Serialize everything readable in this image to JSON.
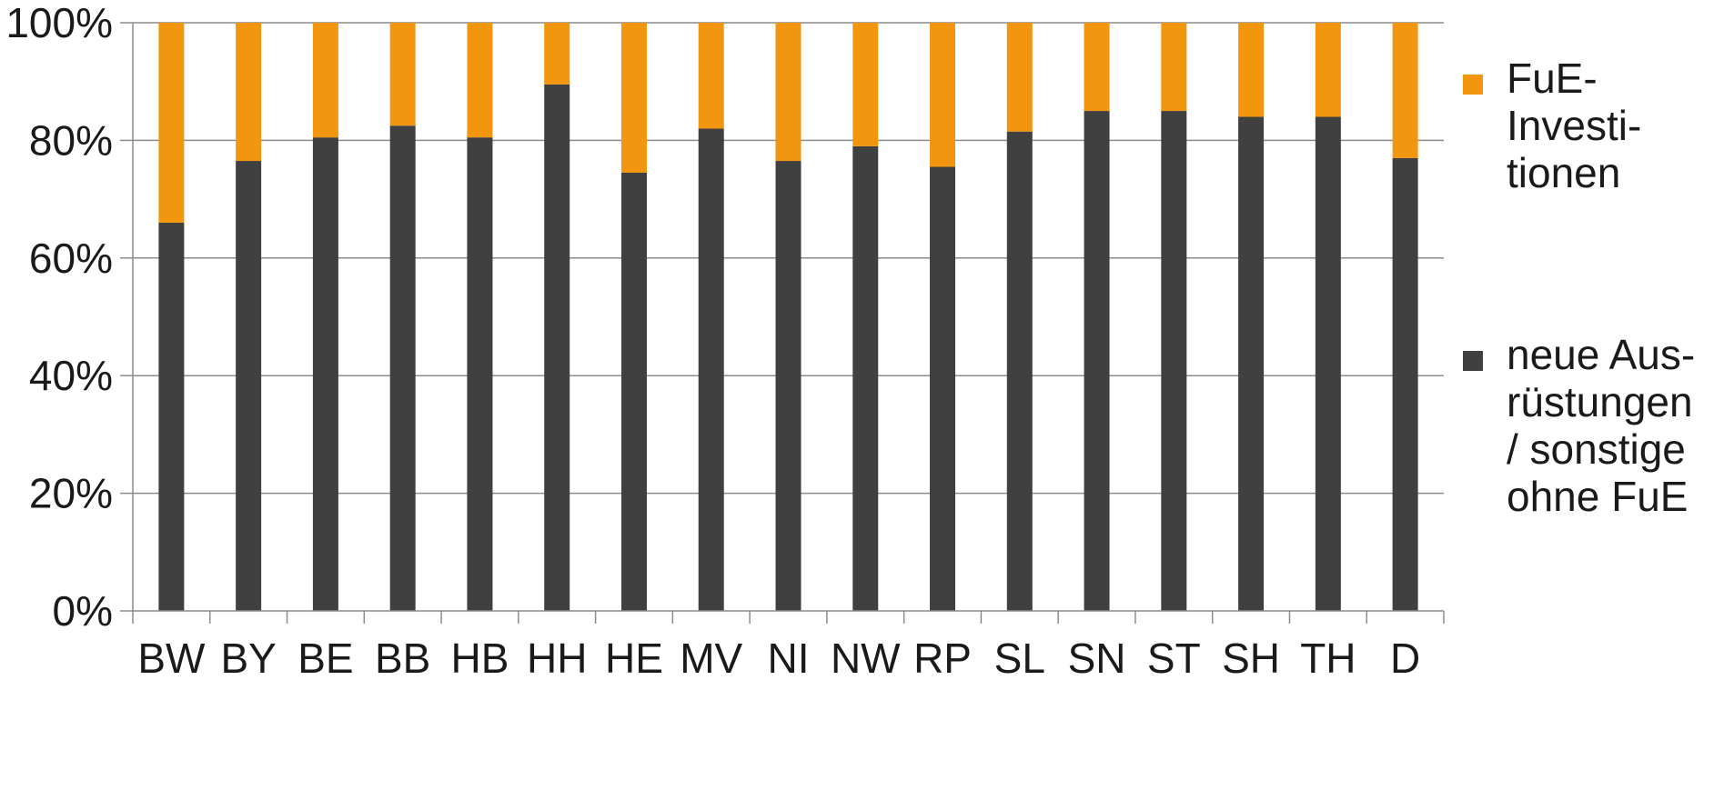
{
  "chart_data": {
    "type": "bar",
    "stacked": true,
    "categories": [
      "BW",
      "BY",
      "BE",
      "BB",
      "HB",
      "HH",
      "HE",
      "MV",
      "NI",
      "NW",
      "RP",
      "SL",
      "SN",
      "ST",
      "SH",
      "TH",
      "D"
    ],
    "series": [
      {
        "name": "neue Aus-rüstungen / sonstige ohne FuE",
        "color": "#404040",
        "values": [
          66,
          76.5,
          80.5,
          82.5,
          80.5,
          89.5,
          74.5,
          82,
          76.5,
          79,
          75.5,
          81.5,
          85,
          85,
          84,
          84,
          77
        ]
      },
      {
        "name": "FuE-Investi-tionen",
        "color": "#f2960f",
        "values": [
          34,
          23.5,
          19.5,
          17.5,
          19.5,
          10.5,
          25.5,
          18,
          23.5,
          21,
          24.5,
          18.5,
          15,
          15,
          16,
          16,
          23
        ]
      }
    ],
    "ylim": [
      0,
      100
    ],
    "yticks": [
      "0%",
      "20%",
      "40%",
      "60%",
      "80%",
      "100%"
    ],
    "grid": true,
    "legend_position": "right"
  },
  "legend": {
    "items": [
      {
        "lines": [
          "FuE-",
          "Investi-",
          "tionen"
        ],
        "color": "#f2960f"
      },
      {
        "lines": [
          "neue Aus-",
          "rüstungen",
          "/ sonstige",
          "ohne FuE"
        ],
        "color": "#404040"
      }
    ]
  }
}
